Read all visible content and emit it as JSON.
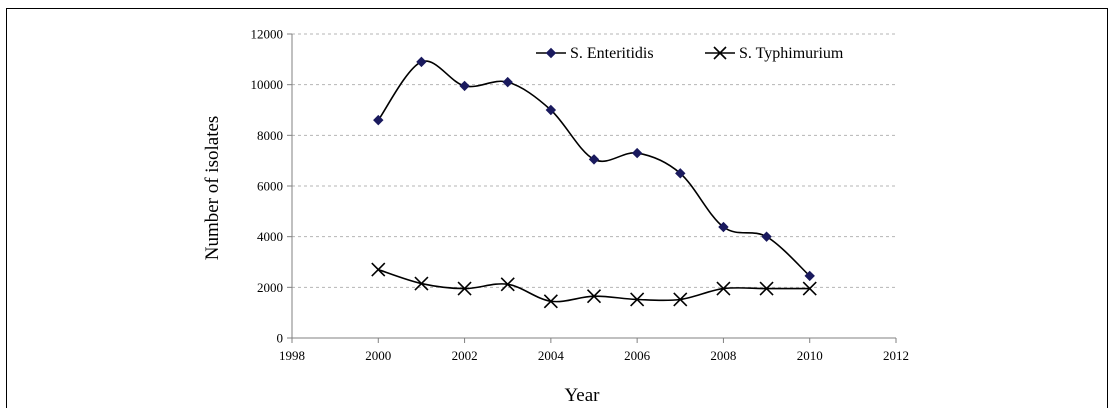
{
  "chart_data": {
    "type": "line",
    "title": "",
    "xlabel": "Year",
    "ylabel": "Number of isolates",
    "xlim": [
      1998,
      2012
    ],
    "ylim": [
      0,
      12000
    ],
    "xticks": [
      1998,
      2000,
      2002,
      2004,
      2006,
      2008,
      2010,
      2012
    ],
    "yticks": [
      0,
      2000,
      4000,
      6000,
      8000,
      10000,
      12000
    ],
    "grid": "horizontal dashed",
    "legend_position": "top-right",
    "smooth": true,
    "x": [
      2000,
      2001,
      2002,
      2003,
      2004,
      2005,
      2006,
      2007,
      2008,
      2009,
      2010
    ],
    "series": [
      {
        "name": "S. Enteritidis",
        "marker": "diamond",
        "color": "#1a1a5e",
        "values": [
          8600,
          10900,
          9950,
          10100,
          9000,
          7050,
          7300,
          6500,
          4380,
          4000,
          2450
        ]
      },
      {
        "name": "S. Typhimurium",
        "marker": "x",
        "color": "#000000",
        "values": [
          2700,
          2150,
          1950,
          2120,
          1450,
          1650,
          1520,
          1520,
          1950,
          1950,
          1950
        ]
      }
    ]
  }
}
